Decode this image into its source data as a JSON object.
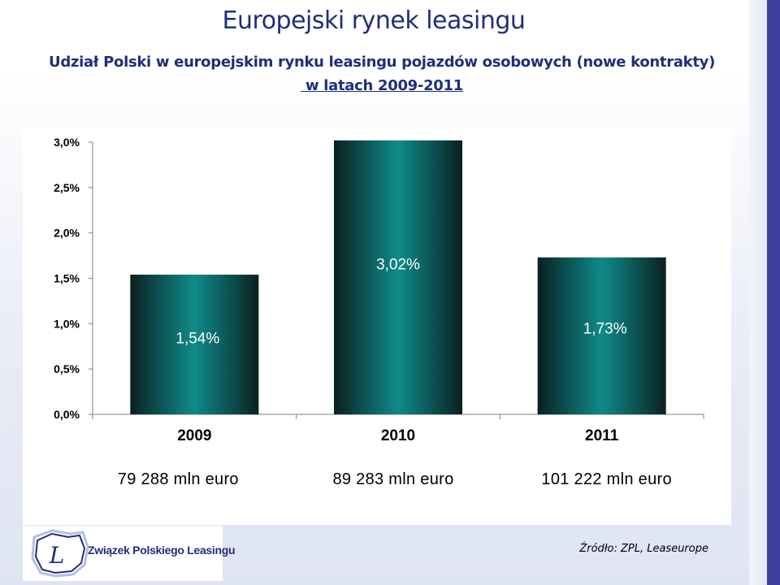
{
  "slide": {
    "title": "Europejski rynek leasingu",
    "subtitle_line1": "Udział Polski w europejskim rynku leasingu pojazdów osobowych (nowe kontrakty)",
    "subtitle_line2": " w latach 2009-2011",
    "source": "Źródło: ZPL, Leaseurope",
    "logo_name": "Związek Polskiego Leasingu",
    "logo_mark": "L"
  },
  "colors": {
    "title": "#1f2f7a",
    "bar_edge": "#0b1f1f",
    "bar_center": "#0f8a8a",
    "sidebar": "#3c3f9b"
  },
  "chart_data": {
    "type": "bar",
    "categories": [
      "2009",
      "2010",
      "2011"
    ],
    "values": [
      1.54,
      3.02,
      1.73
    ],
    "data_labels": [
      "1,54%",
      "3,02%",
      "1,73%"
    ],
    "amount_labels": [
      "79 288 mln euro",
      "89 283 mln euro",
      "101 222 mln euro"
    ],
    "ytick_labels": [
      "0,0%",
      "0,5%",
      "1,0%",
      "1,5%",
      "2,0%",
      "2,5%",
      "3,0%"
    ],
    "yticks": [
      0,
      0.5,
      1.0,
      1.5,
      2.0,
      2.5,
      3.0
    ],
    "ylim": [
      0,
      3.0
    ],
    "grid": false,
    "legend": "none"
  }
}
